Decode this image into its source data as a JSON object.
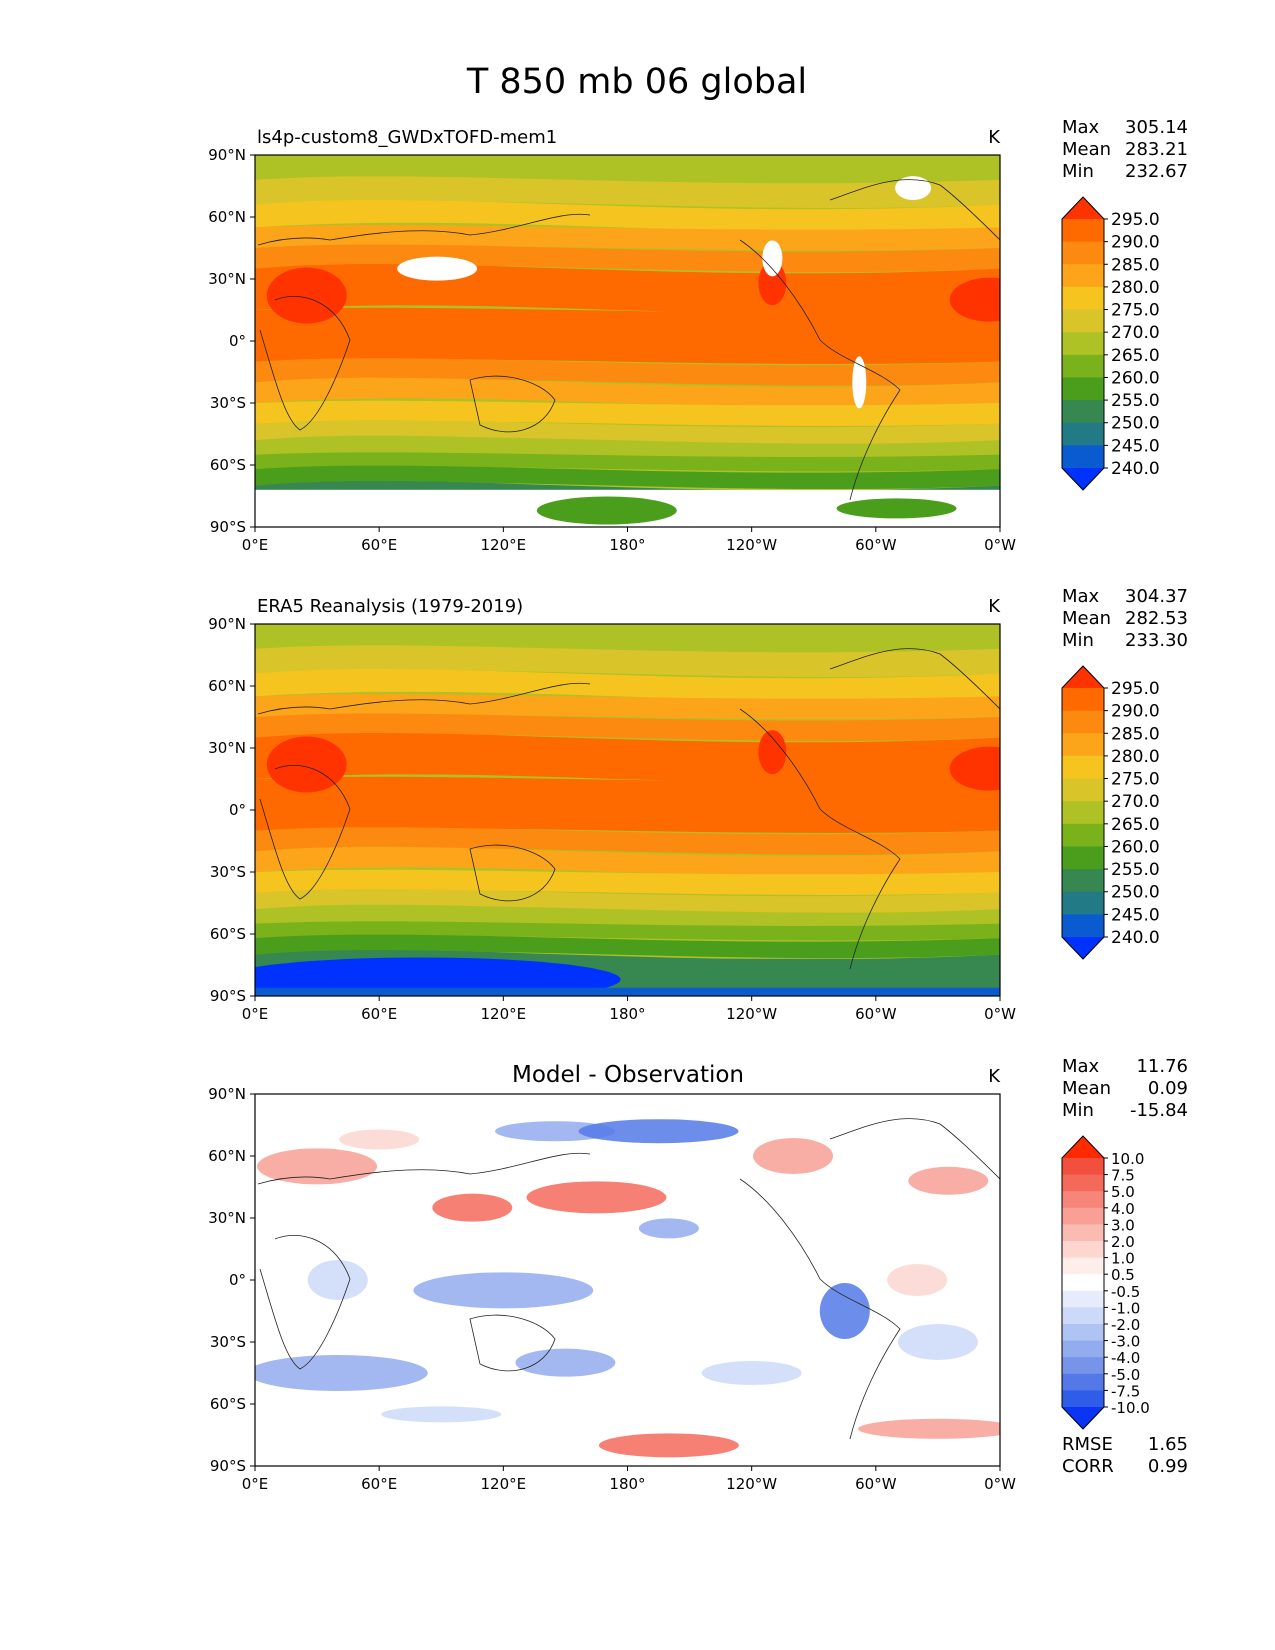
{
  "title": "T 850 mb 06 global",
  "chart_data": {
    "type": "heatmap",
    "title": "T 850 mb 06 global",
    "panels": [
      {
        "title": "ls4p-custom8_GWDxTOFD-mem1",
        "units": "K",
        "stats": [
          {
            "label": "Max",
            "value": "305.14"
          },
          {
            "label": "Mean",
            "value": "283.21"
          },
          {
            "label": "Min",
            "value": "232.67"
          }
        ],
        "colorbar": {
          "levels": [
            "295.0",
            "290.0",
            "285.0",
            "280.0",
            "275.0",
            "270.0",
            "265.0",
            "260.0",
            "255.0",
            "250.0",
            "245.0",
            "240.0"
          ],
          "colors": [
            "#ff3300",
            "#ff6a00",
            "#fd8a10",
            "#fca51a",
            "#f5c41f",
            "#d9c42a",
            "#aec226",
            "#79b21a",
            "#4a9e1c",
            "#378850",
            "#227a86",
            "#0a5bd0",
            "#0032ff"
          ]
        },
        "fill_colors": [
          "#ff3300",
          "#ff6a00",
          "#fd8a10",
          "#fca51a",
          "#f5c41f",
          "#d9c42a",
          "#aec226",
          "#79b21a",
          "#4a9e1c",
          "#378850",
          "#227a86",
          "#0a5bd0",
          "#0032ff"
        ]
      },
      {
        "title": "ERA5 Reanalysis (1979-2019)",
        "units": "K",
        "stats": [
          {
            "label": "Max",
            "value": "304.37"
          },
          {
            "label": "Mean",
            "value": "282.53"
          },
          {
            "label": "Min",
            "value": "233.30"
          }
        ],
        "colorbar": {
          "levels": [
            "295.0",
            "290.0",
            "285.0",
            "280.0",
            "275.0",
            "270.0",
            "265.0",
            "260.0",
            "255.0",
            "250.0",
            "245.0",
            "240.0"
          ],
          "colors": [
            "#ff3300",
            "#ff6a00",
            "#fd8a10",
            "#fca51a",
            "#f5c41f",
            "#d9c42a",
            "#aec226",
            "#79b21a",
            "#4a9e1c",
            "#378850",
            "#227a86",
            "#0a5bd0",
            "#0032ff"
          ]
        },
        "fill_colors": [
          "#ff3300",
          "#ff6a00",
          "#fd8a10",
          "#fca51a",
          "#f5c41f",
          "#d9c42a",
          "#aec226",
          "#79b21a",
          "#4a9e1c",
          "#378850",
          "#227a86",
          "#0a5bd0",
          "#0032ff"
        ]
      },
      {
        "title": "Model - Observation",
        "units": "K",
        "stats": [
          {
            "label": "Max",
            "value": "11.76"
          },
          {
            "label": "Mean",
            "value": "0.09"
          },
          {
            "label": "Min",
            "value": "-15.84"
          }
        ],
        "colorbar": {
          "levels": [
            "10.0",
            "7.5",
            "5.0",
            "4.0",
            "3.0",
            "2.0",
            "1.0",
            "0.5",
            "-0.5",
            "-1.0",
            "-2.0",
            "-3.0",
            "-4.0",
            "-5.0",
            "-7.5",
            "-10.0"
          ],
          "colors": [
            "#ff2a00",
            "#f2503c",
            "#f46a5a",
            "#f6857a",
            "#f8a095",
            "#fabcb2",
            "#fcd6cf",
            "#feeeea",
            "#ffffff",
            "#e6ecfb",
            "#cdd9f8",
            "#b0c4f4",
            "#93acee",
            "#7694e8",
            "#5479e6",
            "#2f5de8",
            "#0a35f5"
          ]
        },
        "fill_colors": [
          "#f46a5a",
          "#f8a095",
          "#fcd6cf",
          "#ffffff",
          "#cdd9f8",
          "#93acee",
          "#5479e6",
          "#2f5de8"
        ],
        "footer_stats": [
          {
            "label": "RMSE",
            "value": "1.65"
          },
          {
            "label": "CORR",
            "value": "0.99"
          }
        ]
      }
    ],
    "x_ticks": [
      "0°E",
      "60°E",
      "120°E",
      "180°",
      "120°W",
      "60°W",
      "0°W"
    ],
    "y_ticks": [
      "90°N",
      "60°N",
      "30°N",
      "0°",
      "30°S",
      "60°S",
      "90°S"
    ],
    "xlim": [
      0,
      360
    ],
    "ylim": [
      -90,
      90
    ]
  }
}
